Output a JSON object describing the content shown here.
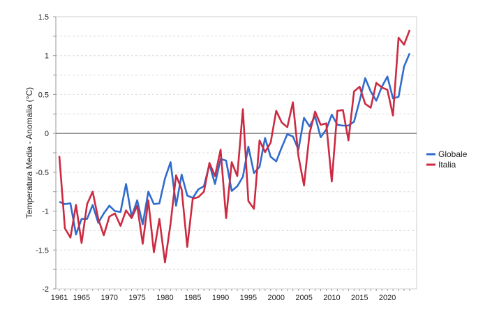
{
  "chart_data": {
    "type": "line",
    "title": "",
    "xlabel": "",
    "ylabel": "Temperatura Media - Anomalia (°C)",
    "ylim": [
      -2,
      1.5
    ],
    "xlim": [
      1961,
      2024
    ],
    "y_ticks": [
      "1.5",
      "1",
      "0.5",
      "0",
      "-0.5",
      "-1",
      "-1.5",
      "-2"
    ],
    "y_tick_values": [
      1.5,
      1,
      0.5,
      0,
      -0.5,
      -1,
      -1.5,
      -2
    ],
    "x_ticks": [
      "1961",
      "1965",
      "1970",
      "1975",
      "1980",
      "1985",
      "1990",
      "1995",
      "2000",
      "2005",
      "2010",
      "2015",
      "2020"
    ],
    "x_tick_values": [
      1961,
      1965,
      1970,
      1975,
      1980,
      1985,
      1990,
      1995,
      2000,
      2005,
      2010,
      2015,
      2020
    ],
    "grid": "horizontal dashed, every 0.25",
    "legend_position": "right",
    "x_start": 1961,
    "series": [
      {
        "name": "Globale",
        "color": "#2f6ccc",
        "values": [
          -0.88,
          -0.91,
          -0.9,
          -1.3,
          -1.1,
          -1.1,
          -0.92,
          -1.15,
          -1.03,
          -0.93,
          -1.0,
          -1.01,
          -0.65,
          -1.07,
          -0.86,
          -1.17,
          -0.75,
          -0.91,
          -0.9,
          -0.58,
          -0.37,
          -0.93,
          -0.53,
          -0.8,
          -0.83,
          -0.72,
          -0.68,
          -0.4,
          -0.65,
          -0.33,
          -0.35,
          -0.74,
          -0.68,
          -0.56,
          -0.17,
          -0.51,
          -0.43,
          -0.06,
          -0.3,
          -0.36,
          -0.18,
          -0.01,
          -0.04,
          -0.21,
          0.2,
          0.09,
          0.22,
          -0.05,
          0.05,
          0.24,
          0.11,
          0.1,
          0.1,
          0.15,
          0.42,
          0.71,
          0.54,
          0.42,
          0.6,
          0.73,
          0.45,
          0.47,
          0.86,
          1.03
        ]
      },
      {
        "name": "Italia",
        "color": "#cc2a41",
        "values": [
          -0.29,
          -1.22,
          -1.34,
          -0.92,
          -1.41,
          -0.91,
          -0.75,
          -1.1,
          -1.31,
          -1.07,
          -1.03,
          -1.19,
          -0.99,
          -1.09,
          -0.93,
          -1.42,
          -0.86,
          -1.53,
          -1.1,
          -1.66,
          -1.16,
          -0.54,
          -0.72,
          -1.46,
          -0.84,
          -0.82,
          -0.75,
          -0.38,
          -0.55,
          -0.21,
          -1.09,
          -0.37,
          -0.55,
          0.31,
          -0.87,
          -0.97,
          -0.09,
          -0.24,
          -0.12,
          0.29,
          0.14,
          0.08,
          0.4,
          -0.29,
          -0.67,
          0.0,
          0.28,
          0.11,
          0.13,
          -0.62,
          0.29,
          0.3,
          -0.09,
          0.54,
          0.6,
          0.38,
          0.33,
          0.65,
          0.59,
          0.56,
          0.23,
          1.23,
          1.14,
          1.33
        ]
      }
    ]
  }
}
